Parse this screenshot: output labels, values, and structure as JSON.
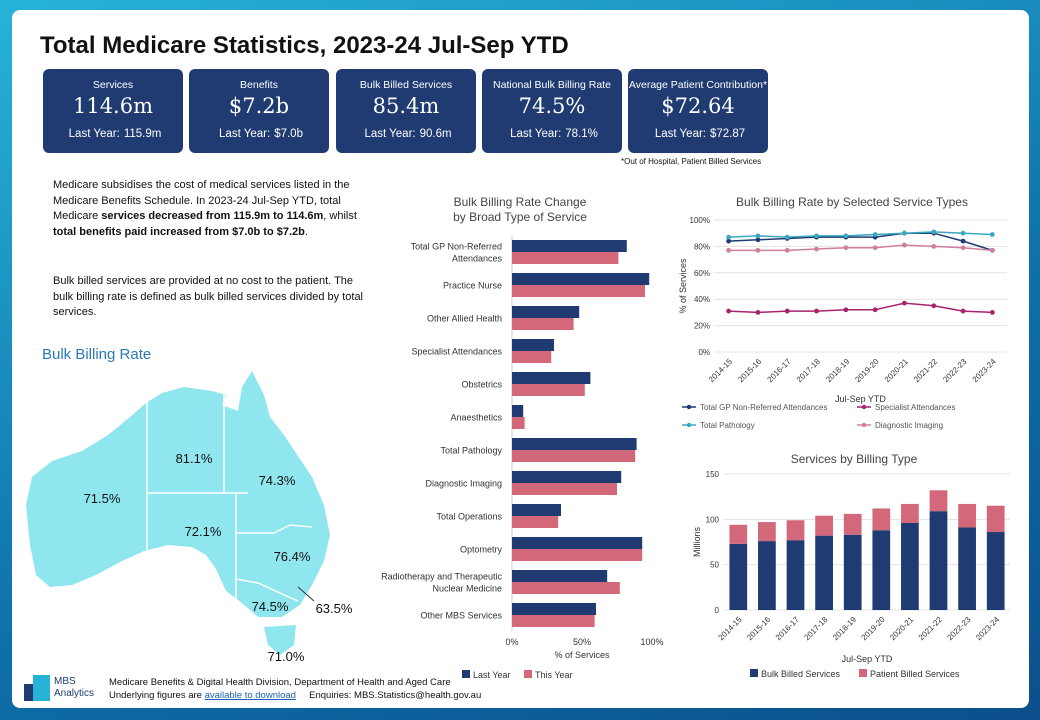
{
  "title": "Total Medicare Statistics, 2023-24 Jul-Sep YTD",
  "kpis": [
    {
      "label": "Services",
      "value": "114.6m",
      "ly_label": "Last Year:",
      "ly_value": "115.9m"
    },
    {
      "label": "Benefits",
      "value": "$7.2b",
      "ly_label": "Last Year:",
      "ly_value": "$7.0b"
    },
    {
      "label": "Bulk Billed Services",
      "value": "85.4m",
      "ly_label": "Last Year:",
      "ly_value": "90.6m"
    },
    {
      "label": "National Bulk Billing Rate",
      "value": "74.5%",
      "ly_label": "Last Year:",
      "ly_value": "78.1%"
    },
    {
      "label": "Average Patient Contribution*",
      "value": "$72.64",
      "ly_label": "Last Year:",
      "ly_value": "$72.87"
    }
  ],
  "footnote": "*Out of Hospital, Patient Billed Services",
  "intro": {
    "p1_a": "Medicare subsidises the cost of medical services listed in the Medicare Benefits Schedule. In 2023-24 Jul-Sep YTD, total Medicare ",
    "p1_b": "services decreased from 115.9m to 114.6m",
    "p1_c": ", whilst ",
    "p1_d": "total benefits paid increased from $7.0b to $7.2b",
    "p1_e": ".",
    "p2": "Bulk billed services are provided at no cost to the patient. The bulk billing rate is defined as bulk billed services divided by total services."
  },
  "map": {
    "title": "Bulk Billing Rate",
    "states": [
      {
        "name": "WA",
        "rate": "71.5%"
      },
      {
        "name": "NT",
        "rate": "81.1%"
      },
      {
        "name": "QLD",
        "rate": "74.3%"
      },
      {
        "name": "SA",
        "rate": "72.1%"
      },
      {
        "name": "NSW",
        "rate": "76.4%"
      },
      {
        "name": "VIC",
        "rate": "74.5%"
      },
      {
        "name": "ACT",
        "rate": "63.5%"
      },
      {
        "name": "TAS",
        "rate": "71.0%"
      }
    ]
  },
  "colors": {
    "navy": "#1f3b72",
    "pink": "#d2687a",
    "teal": "#3aa8c1",
    "rose": "#d07ea0",
    "magenta": "#a8236e",
    "map": "#8fe6ee"
  },
  "chart_data": [
    {
      "type": "bar",
      "orientation": "horizontal",
      "title": "Bulk Billing Rate Change by Broad Type of Service",
      "title_lines": [
        "Bulk Billing Rate Change",
        "by Broad Type of Service"
      ],
      "categories": [
        "Total GP Non-Referred Attendances",
        "Practice Nurse",
        "Other Allied Health",
        "Specialist Attendances",
        "Obstetrics",
        "Anaesthetics",
        "Total Pathology",
        "Diagnostic Imaging",
        "Total Operations",
        "Optometry",
        "Radiotherapy and Therapeutic Nuclear Medicine",
        "Other MBS Services"
      ],
      "category_lines": [
        [
          "Total GP Non-Referred",
          "Attendances"
        ],
        [
          "Practice Nurse"
        ],
        [
          "Other Allied Health"
        ],
        [
          "Specialist Attendances"
        ],
        [
          "Obstetrics"
        ],
        [
          "Anaesthetics"
        ],
        [
          "Total Pathology"
        ],
        [
          "Diagnostic Imaging"
        ],
        [
          "Total Operations"
        ],
        [
          "Optometry"
        ],
        [
          "Radiotherapy and Therapeutic",
          "Nuclear Medicine"
        ],
        [
          "Other MBS Services"
        ]
      ],
      "series": [
        {
          "name": "Last Year",
          "values": [
            82,
            98,
            48,
            30,
            56,
            8,
            89,
            78,
            35,
            93,
            68,
            60
          ]
        },
        {
          "name": "This Year",
          "values": [
            76,
            95,
            44,
            28,
            52,
            9,
            88,
            75,
            33,
            93,
            77,
            59
          ]
        }
      ],
      "xlabel": "% of Services",
      "xlim": [
        0,
        100
      ],
      "xticks": [
        "0%",
        "50%",
        "100%"
      ]
    },
    {
      "type": "line",
      "title": "Bulk Billing Rate by Selected Service Types",
      "x": [
        "2014-15",
        "2015-16",
        "2016-17",
        "2017-18",
        "2018-19",
        "2019-20",
        "2020-21",
        "2021-22",
        "2022-23",
        "2023-24"
      ],
      "xlabel": "Jul-Sep YTD",
      "ylabel": "% of Services",
      "ylim": [
        0,
        100
      ],
      "yticks": [
        "0%",
        "20%",
        "40%",
        "60%",
        "80%",
        "100%"
      ],
      "series": [
        {
          "name": "Total GP Non-Referred Attendances",
          "values": [
            84,
            85,
            86,
            87,
            87,
            87,
            90,
            90,
            84,
            77
          ]
        },
        {
          "name": "Specialist Attendances",
          "values": [
            31,
            30,
            31,
            31,
            32,
            32,
            37,
            35,
            31,
            30
          ]
        },
        {
          "name": "Total Pathology",
          "values": [
            87,
            88,
            87,
            88,
            88,
            89,
            90,
            91,
            90,
            89
          ]
        },
        {
          "name": "Diagnostic Imaging",
          "values": [
            77,
            77,
            77,
            78,
            79,
            79,
            81,
            80,
            79,
            77
          ]
        }
      ]
    },
    {
      "type": "bar",
      "stacked": true,
      "title": "Services by Billing Type",
      "x": [
        "2014-15",
        "2015-16",
        "2016-17",
        "2017-18",
        "2018-19",
        "2019-20",
        "2020-21",
        "2021-22",
        "2022-23",
        "2023-24"
      ],
      "xlabel": "Jul-Sep YTD",
      "ylabel": "Millions",
      "ylim": [
        0,
        150
      ],
      "yticks": [
        "0",
        "50",
        "100",
        "150"
      ],
      "series": [
        {
          "name": "Bulk Billed Services",
          "values": [
            73,
            76,
            77,
            82,
            83,
            88,
            96,
            109,
            91,
            86
          ]
        },
        {
          "name": "Patient Billed Services",
          "values": [
            21,
            21,
            22,
            22,
            23,
            24,
            21,
            23,
            26,
            29
          ]
        }
      ]
    }
  ],
  "footer": {
    "logo_line1": "MBS",
    "logo_line2": "Analytics",
    "line1": "Medicare Benefits & Digital Health Division, Department of Health and Aged Care",
    "line2_pre": "Underlying figures are ",
    "line2_link": "available to download",
    "line2_post": "     Enquiries: MBS.Statistics@health.gov.au"
  }
}
